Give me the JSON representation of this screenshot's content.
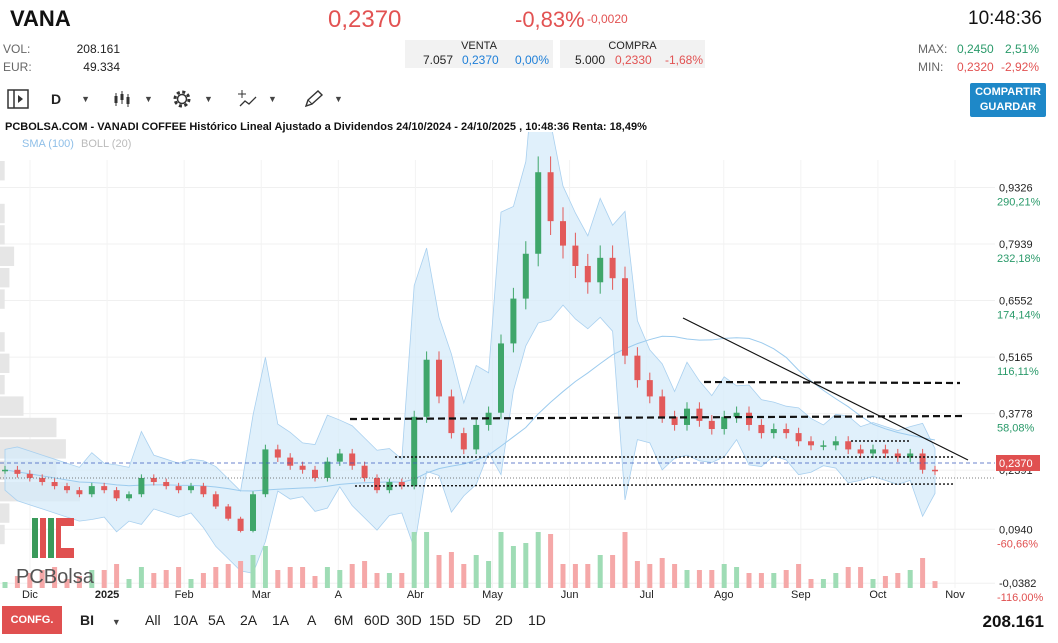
{
  "header": {
    "ticker": "VANA",
    "price": "0,2370",
    "change_pct": "-0,83%",
    "change_abs": "-0,0020",
    "time": "10:48:36",
    "vol_label": "VOL:",
    "vol_value": "208.161",
    "eur_label": "EUR:",
    "eur_value": "49.334",
    "max_label": "MAX:",
    "max_value": "0,2450",
    "max_pct": "2,51%",
    "min_label": "MIN:",
    "min_value": "0,2320",
    "min_pct": "-2,92%"
  },
  "orderbook": {
    "sell_label": "VENTA",
    "sell_qty": "7.057",
    "sell_price": "0,2370",
    "sell_pct": "0,00%",
    "buy_label": "COMPRA",
    "buy_qty": "5.000",
    "buy_price": "0,2330",
    "buy_pct": "-1,68%"
  },
  "toolbar": {
    "interval": "D",
    "share_line1": "COMPARTIR",
    "share_line2": "GUARDAR"
  },
  "chart_header": {
    "title": "PCBOLSA.COM - VANADI COFFEE Histórico Lineal Ajustado a Dividendos 24/10/2024 - 24/10/2025 , 10:48:36 Renta: 18,49%",
    "sma": "SMA (100)",
    "boll": "BOLL (20)",
    "logo": "PCBolsa"
  },
  "chart_data": {
    "type": "line",
    "y_ticks": [
      {
        "value": 0.9326,
        "label": "0,9326",
        "pct": "290,21%"
      },
      {
        "value": 0.7939,
        "label": "0,7939",
        "pct": "232,18%"
      },
      {
        "value": 0.6552,
        "label": "0,6552",
        "pct": "174,14%"
      },
      {
        "value": 0.5165,
        "label": "0,5165",
        "pct": "116,11%"
      },
      {
        "value": 0.3778,
        "label": "0,3778",
        "pct": "58,08%"
      },
      {
        "value": 0.2391,
        "label": "0,2391",
        "pct": ""
      },
      {
        "value": 0.094,
        "label": "0,0940",
        "pct": "-60,66%"
      },
      {
        "value": -0.0382,
        "label": "-0,0382",
        "pct": "-116,00%"
      }
    ],
    "x_labels": [
      "Dic",
      "2025",
      "Feb",
      "Mar",
      "A",
      "Abr",
      "May",
      "Jun",
      "Jul",
      "Ago",
      "Sep",
      "Oct",
      "Nov"
    ],
    "last_price_label": "0,2370",
    "last_price": 0.237,
    "ylim": [
      -0.05,
      1.0
    ],
    "series": [
      {
        "values": [
          0.24,
          0.23,
          0.22,
          0.21,
          0.2,
          0.19,
          0.18,
          0.2,
          0.19,
          0.17,
          0.18,
          0.22,
          0.21,
          0.2,
          0.19,
          0.2,
          0.18,
          0.15,
          0.12,
          0.09,
          0.18,
          0.29,
          0.27,
          0.25,
          0.24,
          0.22,
          0.26,
          0.28,
          0.25,
          0.22,
          0.19,
          0.21,
          0.2,
          0.37,
          0.51,
          0.42,
          0.33,
          0.29,
          0.35,
          0.38,
          0.55,
          0.66,
          0.77,
          0.97,
          0.85,
          0.79,
          0.74,
          0.7,
          0.76,
          0.71,
          0.52,
          0.46,
          0.42,
          0.37,
          0.35,
          0.39,
          0.36,
          0.34,
          0.37,
          0.38,
          0.35,
          0.33,
          0.34,
          0.33,
          0.31,
          0.3,
          0.3,
          0.31,
          0.29,
          0.28,
          0.29,
          0.28,
          0.27,
          0.28,
          0.24,
          0.237
        ]
      }
    ]
  }
}
